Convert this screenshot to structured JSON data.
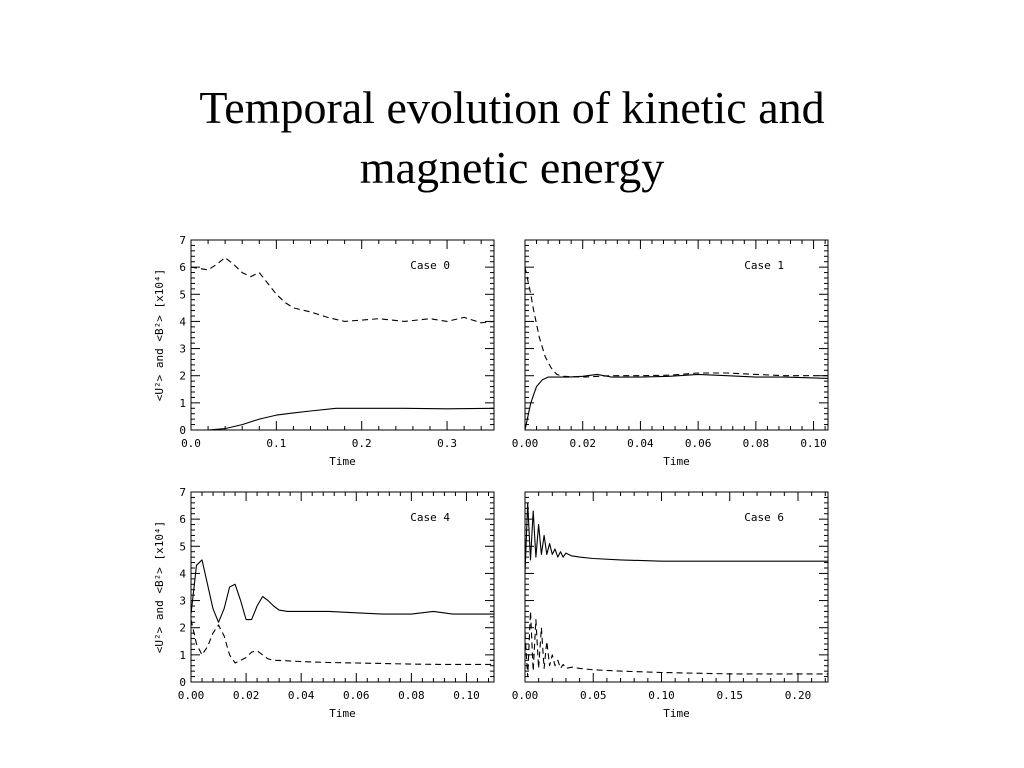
{
  "slide": {
    "title_line1": "Temporal evolution of kinetic and",
    "title_line2": "magnetic energy"
  },
  "chart_data": [
    {
      "type": "line",
      "annotation": "Case 0",
      "xlabel": "Time",
      "ylabel": "<U²> and <B²> [x10⁴]",
      "xlim": [
        0,
        0.355
      ],
      "ylim": [
        0,
        7
      ],
      "xticks": [
        0.0,
        0.1,
        0.2,
        0.3
      ],
      "xtick_labels": [
        "0.0",
        "0.1",
        "0.2",
        "0.3"
      ],
      "yticks": [
        0,
        1,
        2,
        3,
        4,
        5,
        6,
        7
      ],
      "ytick_labels": [
        "0",
        "1",
        "2",
        "3",
        "4",
        "5",
        "6",
        "7"
      ],
      "series": [
        {
          "style": "solid",
          "x": [
            0,
            0.02,
            0.04,
            0.06,
            0.08,
            0.1,
            0.12,
            0.14,
            0.17,
            0.2,
            0.25,
            0.3,
            0.355
          ],
          "y": [
            0,
            0,
            0.05,
            0.2,
            0.4,
            0.55,
            0.63,
            0.7,
            0.8,
            0.8,
            0.8,
            0.78,
            0.8
          ]
        },
        {
          "style": "dashed",
          "x": [
            0,
            0.01,
            0.02,
            0.03,
            0.04,
            0.05,
            0.06,
            0.07,
            0.08,
            0.09,
            0.1,
            0.11,
            0.12,
            0.14,
            0.16,
            0.18,
            0.2,
            0.22,
            0.25,
            0.28,
            0.3,
            0.32,
            0.34,
            0.355
          ],
          "y": [
            6.0,
            5.95,
            5.9,
            6.1,
            6.35,
            6.1,
            5.8,
            5.65,
            5.8,
            5.4,
            5.0,
            4.7,
            4.5,
            4.35,
            4.15,
            4.0,
            4.05,
            4.1,
            4.0,
            4.1,
            4.0,
            4.15,
            3.95,
            4.0
          ]
        }
      ]
    },
    {
      "type": "line",
      "annotation": "Case 1",
      "xlabel": "Time",
      "ylabel": "",
      "xlim": [
        0,
        0.105
      ],
      "ylim": [
        0,
        7
      ],
      "xticks": [
        0.0,
        0.02,
        0.04,
        0.06,
        0.08,
        0.1
      ],
      "xtick_labels": [
        "0.00",
        "0.02",
        "0.04",
        "0.06",
        "0.08",
        "0.10"
      ],
      "yticks": [
        0,
        1,
        2,
        3,
        4,
        5,
        6,
        7
      ],
      "ytick_labels": [],
      "series": [
        {
          "style": "solid",
          "x": [
            0,
            0.001,
            0.002,
            0.004,
            0.006,
            0.008,
            0.01,
            0.015,
            0.02,
            0.025,
            0.03,
            0.04,
            0.05,
            0.06,
            0.07,
            0.08,
            0.09,
            0.1,
            0.105
          ],
          "y": [
            0,
            0.5,
            1.0,
            1.6,
            1.85,
            1.95,
            1.95,
            1.95,
            1.98,
            2.05,
            1.95,
            1.95,
            1.98,
            2.05,
            2.0,
            1.95,
            1.95,
            1.92,
            1.9
          ]
        },
        {
          "style": "dashed",
          "x": [
            0,
            0.001,
            0.002,
            0.003,
            0.005,
            0.007,
            0.009,
            0.011,
            0.013,
            0.02,
            0.03,
            0.04,
            0.05,
            0.06,
            0.07,
            0.08,
            0.09,
            0.1,
            0.105
          ],
          "y": [
            6.0,
            5.5,
            5.0,
            4.4,
            3.4,
            2.7,
            2.3,
            2.05,
            1.98,
            1.95,
            2.0,
            2.0,
            2.02,
            2.1,
            2.1,
            2.05,
            2.0,
            2.0,
            2.0
          ]
        }
      ]
    },
    {
      "type": "line",
      "annotation": "Case 4",
      "xlabel": "Time",
      "ylabel": "<U²> and <B²> [x10⁴]",
      "xlim": [
        0,
        0.11
      ],
      "ylim": [
        0,
        7
      ],
      "xticks": [
        0.0,
        0.02,
        0.04,
        0.06,
        0.08,
        0.1
      ],
      "xtick_labels": [
        "0.00",
        "0.02",
        "0.04",
        "0.06",
        "0.08",
        "0.10"
      ],
      "yticks": [
        0,
        1,
        2,
        3,
        4,
        5,
        6,
        7
      ],
      "ytick_labels": [
        "0",
        "1",
        "2",
        "3",
        "4",
        "5",
        "6",
        "7"
      ],
      "series": [
        {
          "style": "solid",
          "x": [
            0,
            0.002,
            0.004,
            0.006,
            0.008,
            0.01,
            0.012,
            0.014,
            0.016,
            0.018,
            0.02,
            0.022,
            0.024,
            0.026,
            0.028,
            0.03,
            0.032,
            0.035,
            0.04,
            0.05,
            0.06,
            0.07,
            0.08,
            0.088,
            0.095,
            0.11
          ],
          "y": [
            2.5,
            4.3,
            4.5,
            3.6,
            2.7,
            2.2,
            2.7,
            3.5,
            3.6,
            3.0,
            2.3,
            2.3,
            2.8,
            3.15,
            3.0,
            2.8,
            2.65,
            2.6,
            2.6,
            2.6,
            2.55,
            2.5,
            2.5,
            2.6,
            2.5,
            2.5
          ]
        },
        {
          "style": "dashed",
          "x": [
            0,
            0.002,
            0.004,
            0.006,
            0.008,
            0.01,
            0.012,
            0.014,
            0.016,
            0.018,
            0.02,
            0.022,
            0.024,
            0.026,
            0.028,
            0.03,
            0.035,
            0.04,
            0.05,
            0.06,
            0.07,
            0.08,
            0.09,
            0.1,
            0.11
          ],
          "y": [
            2.3,
            1.4,
            1.0,
            1.3,
            1.8,
            2.1,
            1.7,
            1.0,
            0.7,
            0.8,
            0.9,
            1.1,
            1.15,
            1.0,
            0.85,
            0.8,
            0.78,
            0.75,
            0.72,
            0.7,
            0.68,
            0.66,
            0.65,
            0.65,
            0.65
          ]
        }
      ]
    },
    {
      "type": "line",
      "annotation": "Case 6",
      "xlabel": "Time",
      "ylabel": "",
      "xlim": [
        0,
        0.222
      ],
      "ylim": [
        0,
        7
      ],
      "xticks": [
        0.0,
        0.05,
        0.1,
        0.15,
        0.2
      ],
      "xtick_labels": [
        "0.00",
        "0.05",
        "0.10",
        "0.15",
        "0.20"
      ],
      "yticks": [
        0,
        1,
        2,
        3,
        4,
        5,
        6,
        7
      ],
      "ytick_labels": [],
      "series": [
        {
          "style": "solid",
          "x": [
            0,
            0.002,
            0.004,
            0.006,
            0.008,
            0.01,
            0.012,
            0.014,
            0.016,
            0.018,
            0.02,
            0.022,
            0.024,
            0.026,
            0.028,
            0.03,
            0.034,
            0.04,
            0.05,
            0.07,
            0.1,
            0.15,
            0.2,
            0.222
          ],
          "y": [
            4.0,
            6.6,
            4.5,
            6.3,
            4.6,
            5.8,
            4.7,
            5.4,
            4.7,
            5.1,
            4.7,
            4.9,
            4.6,
            4.8,
            4.6,
            4.75,
            4.65,
            4.6,
            4.55,
            4.5,
            4.45,
            4.45,
            4.45,
            4.45
          ]
        },
        {
          "style": "dashed",
          "x": [
            0,
            0.002,
            0.004,
            0.006,
            0.008,
            0.01,
            0.012,
            0.014,
            0.016,
            0.018,
            0.02,
            0.022,
            0.024,
            0.026,
            0.028,
            0.03,
            0.035,
            0.04,
            0.05,
            0.07,
            0.1,
            0.15,
            0.2,
            0.222
          ],
          "y": [
            1.8,
            0.2,
            2.6,
            0.4,
            2.3,
            0.5,
            2.0,
            0.5,
            1.5,
            0.6,
            1.0,
            0.6,
            0.8,
            0.5,
            0.65,
            0.5,
            0.55,
            0.5,
            0.45,
            0.4,
            0.35,
            0.3,
            0.3,
            0.3
          ]
        }
      ]
    }
  ]
}
